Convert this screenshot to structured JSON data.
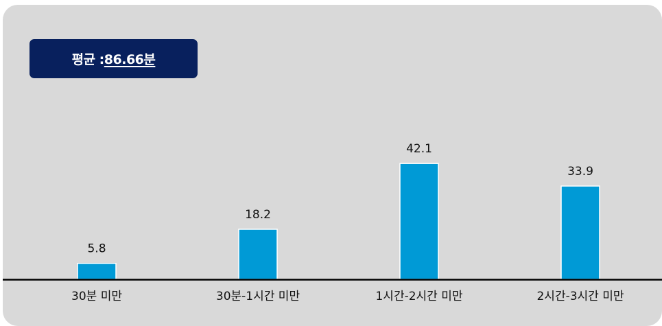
{
  "summary": {
    "label": "평균 : ",
    "value": "86.66분"
  },
  "colors": {
    "panel": "#d9d9d9",
    "badge": "#08205d",
    "bar": "#009ad6",
    "bar_stroke": "#ffffff",
    "axis": "#000000",
    "text": "#111111"
  },
  "chart_data": {
    "type": "bar",
    "categories": [
      "30분 미만",
      "30분-1시간 미만",
      "1시간-2시간 미만",
      "2시간-3시간 미만"
    ],
    "values": [
      5.8,
      18.2,
      42.1,
      33.9
    ],
    "value_labels": [
      "5.8",
      "18.2",
      "42.1",
      "33.9"
    ],
    "title": "",
    "xlabel": "",
    "ylabel": "",
    "ylim": [
      0,
      60
    ],
    "grid": false,
    "legend": "none"
  }
}
